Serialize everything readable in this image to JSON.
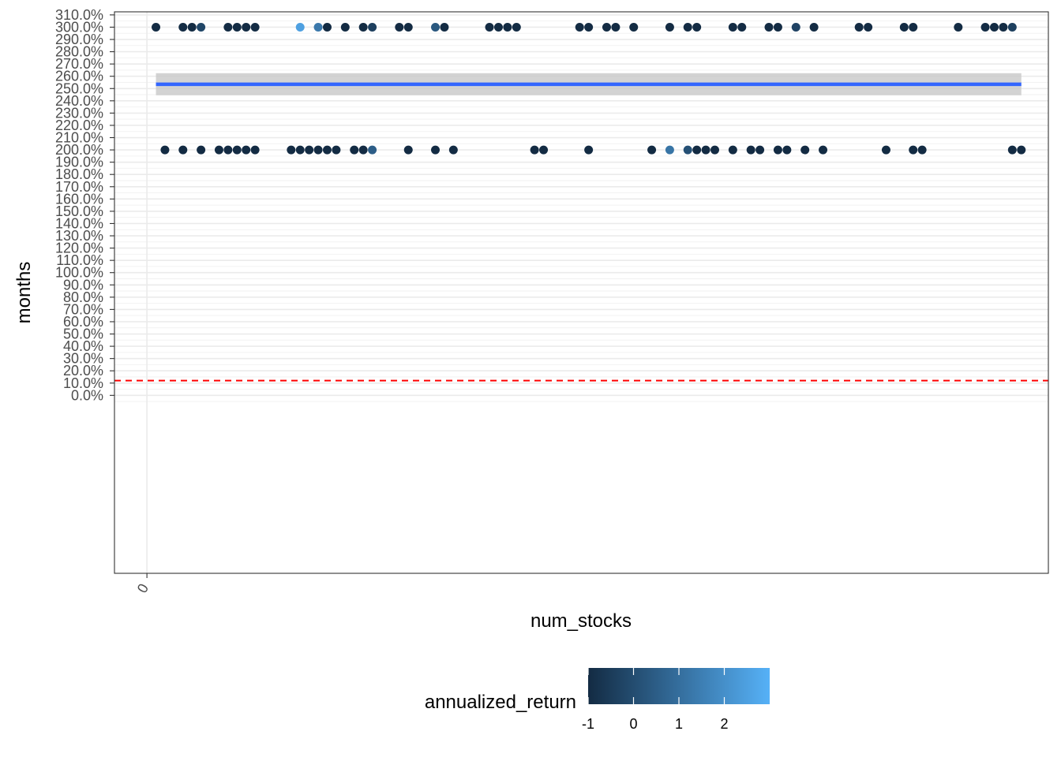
{
  "chart_data": {
    "type": "scatter",
    "title": "",
    "xlabel": "num_stocks",
    "ylabel": "months",
    "xlim": [
      -0.018,
      0.5
    ],
    "ylim": [
      -1.45,
      3.125
    ],
    "x_ticks": [
      {
        "value": 0,
        "label": "0"
      }
    ],
    "y_ticks": [
      {
        "value": 0.0,
        "label": "0.0%"
      },
      {
        "value": 0.1,
        "label": "10.0%"
      },
      {
        "value": 0.2,
        "label": "20.0%"
      },
      {
        "value": 0.3,
        "label": "30.0%"
      },
      {
        "value": 0.4,
        "label": "40.0%"
      },
      {
        "value": 0.5,
        "label": "50.0%"
      },
      {
        "value": 0.6,
        "label": "60.0%"
      },
      {
        "value": 0.7,
        "label": "70.0%"
      },
      {
        "value": 0.8,
        "label": "80.0%"
      },
      {
        "value": 0.9,
        "label": "90.0%"
      },
      {
        "value": 1.0,
        "label": "100.0%"
      },
      {
        "value": 1.1,
        "label": "110.0%"
      },
      {
        "value": 1.2,
        "label": "120.0%"
      },
      {
        "value": 1.3,
        "label": "130.0%"
      },
      {
        "value": 1.4,
        "label": "140.0%"
      },
      {
        "value": 1.5,
        "label": "150.0%"
      },
      {
        "value": 1.6,
        "label": "160.0%"
      },
      {
        "value": 1.7,
        "label": "170.0%"
      },
      {
        "value": 1.8,
        "label": "180.0%"
      },
      {
        "value": 1.9,
        "label": "190.0%"
      },
      {
        "value": 2.0,
        "label": "200.0%"
      },
      {
        "value": 2.1,
        "label": "210.0%"
      },
      {
        "value": 2.2,
        "label": "220.0%"
      },
      {
        "value": 2.3,
        "label": "230.0%"
      },
      {
        "value": 2.4,
        "label": "240.0%"
      },
      {
        "value": 2.5,
        "label": "250.0%"
      },
      {
        "value": 2.6,
        "label": "260.0%"
      },
      {
        "value": 2.7,
        "label": "270.0%"
      },
      {
        "value": 2.8,
        "label": "280.0%"
      },
      {
        "value": 2.9,
        "label": "290.0%"
      },
      {
        "value": 3.0,
        "label": "300.0%"
      },
      {
        "value": 3.1,
        "label": "310.0%"
      }
    ],
    "points": [
      {
        "x": 0.005,
        "y": 3.0,
        "c": -1.0
      },
      {
        "x": 0.02,
        "y": 3.0,
        "c": -1.0
      },
      {
        "x": 0.025,
        "y": 3.0,
        "c": -1.0
      },
      {
        "x": 0.03,
        "y": 3.0,
        "c": -0.2
      },
      {
        "x": 0.045,
        "y": 3.0,
        "c": -1.0
      },
      {
        "x": 0.05,
        "y": 3.0,
        "c": -1.0
      },
      {
        "x": 0.055,
        "y": 3.0,
        "c": -1.0
      },
      {
        "x": 0.06,
        "y": 3.0,
        "c": -1.0
      },
      {
        "x": 0.085,
        "y": 3.0,
        "c": 2.5
      },
      {
        "x": 0.095,
        "y": 3.0,
        "c": 1.3
      },
      {
        "x": 0.1,
        "y": 3.0,
        "c": -1.0
      },
      {
        "x": 0.11,
        "y": 3.0,
        "c": -1.0
      },
      {
        "x": 0.12,
        "y": 3.0,
        "c": -1.0
      },
      {
        "x": 0.125,
        "y": 3.0,
        "c": -0.4
      },
      {
        "x": 0.14,
        "y": 3.0,
        "c": -1.0
      },
      {
        "x": 0.145,
        "y": 3.0,
        "c": -1.0
      },
      {
        "x": 0.16,
        "y": 3.0,
        "c": 0.3
      },
      {
        "x": 0.165,
        "y": 3.0,
        "c": -1.0
      },
      {
        "x": 0.19,
        "y": 3.0,
        "c": -1.0
      },
      {
        "x": 0.195,
        "y": 3.0,
        "c": -1.0
      },
      {
        "x": 0.2,
        "y": 3.0,
        "c": -1.0
      },
      {
        "x": 0.205,
        "y": 3.0,
        "c": -1.0
      },
      {
        "x": 0.24,
        "y": 3.0,
        "c": -1.0
      },
      {
        "x": 0.245,
        "y": 3.0,
        "c": -1.0
      },
      {
        "x": 0.255,
        "y": 3.0,
        "c": -1.0
      },
      {
        "x": 0.26,
        "y": 3.0,
        "c": -1.0
      },
      {
        "x": 0.27,
        "y": 3.0,
        "c": -1.0
      },
      {
        "x": 0.29,
        "y": 3.0,
        "c": -1.0
      },
      {
        "x": 0.3,
        "y": 3.0,
        "c": -1.0
      },
      {
        "x": 0.305,
        "y": 3.0,
        "c": -1.0
      },
      {
        "x": 0.325,
        "y": 3.0,
        "c": -1.0
      },
      {
        "x": 0.33,
        "y": 3.0,
        "c": -1.0
      },
      {
        "x": 0.345,
        "y": 3.0,
        "c": -1.0
      },
      {
        "x": 0.35,
        "y": 3.0,
        "c": -1.0
      },
      {
        "x": 0.36,
        "y": 3.0,
        "c": -0.3
      },
      {
        "x": 0.37,
        "y": 3.0,
        "c": -1.0
      },
      {
        "x": 0.395,
        "y": 3.0,
        "c": -1.0
      },
      {
        "x": 0.4,
        "y": 3.0,
        "c": -1.0
      },
      {
        "x": 0.42,
        "y": 3.0,
        "c": -1.0
      },
      {
        "x": 0.425,
        "y": 3.0,
        "c": -1.0
      },
      {
        "x": 0.45,
        "y": 3.0,
        "c": -1.0
      },
      {
        "x": 0.465,
        "y": 3.0,
        "c": -1.0
      },
      {
        "x": 0.47,
        "y": 3.0,
        "c": -1.0
      },
      {
        "x": 0.475,
        "y": 3.0,
        "c": -1.0
      },
      {
        "x": 0.48,
        "y": 3.0,
        "c": -0.4
      },
      {
        "x": 0.01,
        "y": 2.0,
        "c": -1.0
      },
      {
        "x": 0.02,
        "y": 2.0,
        "c": -1.0
      },
      {
        "x": 0.03,
        "y": 2.0,
        "c": -1.0
      },
      {
        "x": 0.04,
        "y": 2.0,
        "c": -1.0
      },
      {
        "x": 0.045,
        "y": 2.0,
        "c": -1.0
      },
      {
        "x": 0.05,
        "y": 2.0,
        "c": -1.0
      },
      {
        "x": 0.055,
        "y": 2.0,
        "c": -1.0
      },
      {
        "x": 0.06,
        "y": 2.0,
        "c": -1.0
      },
      {
        "x": 0.08,
        "y": 2.0,
        "c": -1.0
      },
      {
        "x": 0.085,
        "y": 2.0,
        "c": -1.0
      },
      {
        "x": 0.09,
        "y": 2.0,
        "c": -1.0
      },
      {
        "x": 0.095,
        "y": 2.0,
        "c": -1.0
      },
      {
        "x": 0.1,
        "y": 2.0,
        "c": -1.0
      },
      {
        "x": 0.105,
        "y": 2.0,
        "c": -1.0
      },
      {
        "x": 0.115,
        "y": 2.0,
        "c": -1.0
      },
      {
        "x": 0.12,
        "y": 2.0,
        "c": -1.0
      },
      {
        "x": 0.125,
        "y": 2.0,
        "c": 0.5
      },
      {
        "x": 0.145,
        "y": 2.0,
        "c": -1.0
      },
      {
        "x": 0.16,
        "y": 2.0,
        "c": -1.0
      },
      {
        "x": 0.17,
        "y": 2.0,
        "c": -1.0
      },
      {
        "x": 0.215,
        "y": 2.0,
        "c": -1.0
      },
      {
        "x": 0.22,
        "y": 2.0,
        "c": -1.0
      },
      {
        "x": 0.245,
        "y": 2.0,
        "c": -1.0
      },
      {
        "x": 0.28,
        "y": 2.0,
        "c": -1.0
      },
      {
        "x": 0.29,
        "y": 2.0,
        "c": 1.2
      },
      {
        "x": 0.3,
        "y": 2.0,
        "c": 0.1
      },
      {
        "x": 0.305,
        "y": 2.0,
        "c": -1.0
      },
      {
        "x": 0.31,
        "y": 2.0,
        "c": -1.0
      },
      {
        "x": 0.315,
        "y": 2.0,
        "c": -1.0
      },
      {
        "x": 0.325,
        "y": 2.0,
        "c": -1.0
      },
      {
        "x": 0.335,
        "y": 2.0,
        "c": -1.0
      },
      {
        "x": 0.34,
        "y": 2.0,
        "c": -1.0
      },
      {
        "x": 0.35,
        "y": 2.0,
        "c": -1.0
      },
      {
        "x": 0.355,
        "y": 2.0,
        "c": -1.0
      },
      {
        "x": 0.365,
        "y": 2.0,
        "c": -1.0
      },
      {
        "x": 0.375,
        "y": 2.0,
        "c": -1.0
      },
      {
        "x": 0.41,
        "y": 2.0,
        "c": -1.0
      },
      {
        "x": 0.425,
        "y": 2.0,
        "c": -1.0
      },
      {
        "x": 0.43,
        "y": 2.0,
        "c": -1.0
      },
      {
        "x": 0.48,
        "y": 2.0,
        "c": -1.0
      },
      {
        "x": 0.485,
        "y": 2.0,
        "c": -1.0
      }
    ],
    "smooth_line": {
      "x_start": 0.005,
      "x_end": 0.485,
      "y": 2.535,
      "ci_low": 2.445,
      "ci_high": 2.625,
      "color": "#3366ff",
      "band_color": "#c8c8c8"
    },
    "reference_line": {
      "y": 0.12,
      "color": "#ff0000",
      "style": "dashed"
    },
    "legend": {
      "title": "annualized_return",
      "position": "bottom",
      "range": [
        -1,
        3
      ],
      "ticks": [
        {
          "value": -1,
          "label": "-1"
        },
        {
          "value": 0,
          "label": "0"
        },
        {
          "value": 1,
          "label": "1"
        },
        {
          "value": 2,
          "label": "2"
        }
      ],
      "low_color": "#132b43",
      "high_color": "#56b1f7"
    }
  }
}
